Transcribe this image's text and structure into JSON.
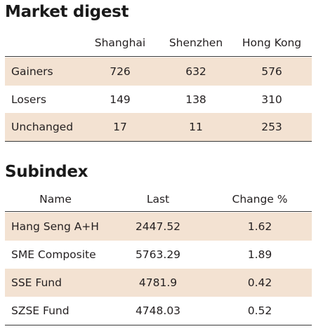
{
  "market_digest": {
    "title": "Market digest",
    "columns": [
      "Shanghai",
      "Shenzhen",
      "Hong Kong"
    ],
    "rows": [
      {
        "label": "Gainers",
        "values": [
          "726",
          "632",
          "576"
        ]
      },
      {
        "label": "Losers",
        "values": [
          "149",
          "138",
          "310"
        ]
      },
      {
        "label": "Unchanged",
        "values": [
          "17",
          "11",
          "253"
        ]
      }
    ]
  },
  "subindex": {
    "title": "Subindex",
    "columns": [
      "Name",
      "Last",
      "Change %"
    ],
    "rows": [
      {
        "name": "Hang Seng A+H",
        "last": "2447.52",
        "change": "1.62"
      },
      {
        "name": "SME Composite",
        "last": "5763.29",
        "change": "1.89"
      },
      {
        "name": "SSE Fund",
        "last": "4781.9",
        "change": "0.42"
      },
      {
        "name": "SZSE Fund",
        "last": "4748.03",
        "change": "0.52"
      }
    ]
  },
  "colors": {
    "row_shade": "#f3e2d2",
    "rule": "#3a3a3a",
    "text": "#231f20"
  }
}
